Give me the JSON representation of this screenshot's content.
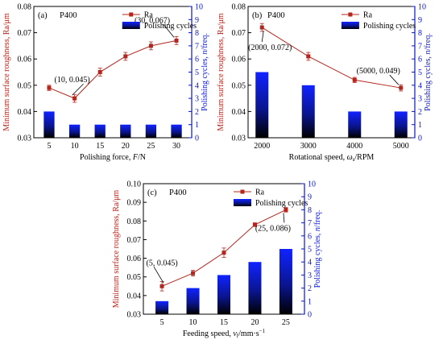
{
  "colors": {
    "ra_series": "#b3261e",
    "bar_top": "#1023ff",
    "bar_bottom": "#000000",
    "right_axis": "#0a16c8"
  },
  "chart_data": [
    {
      "type": "bar+line",
      "panel_label": "(a)",
      "grit": "P400",
      "xlabel_main": "Polishing force, ",
      "xlabel_var": "F",
      "xlabel_unit": "/N",
      "ylabel_left": "Minimum surface roughness, Ra/μm",
      "ylabel_right_main": "Polishing cycles, ",
      "ylabel_right_var": "n",
      "ylabel_right_unit": "/freq.",
      "x": [
        5,
        10,
        15,
        20,
        25,
        30
      ],
      "xtick_labels": [
        "5",
        "10",
        "15",
        "20",
        "25",
        "30"
      ],
      "xlim": [
        2,
        33
      ],
      "ylim_left": [
        0.03,
        0.08
      ],
      "yticks_left": [
        "0.03",
        "0.04",
        "0.05",
        "0.06",
        "0.07",
        "0.08"
      ],
      "ylim_right": [
        0,
        10
      ],
      "yticks_right": [
        "0",
        "1",
        "2",
        "3",
        "4",
        "5",
        "6",
        "7",
        "8",
        "9",
        "10"
      ],
      "series": [
        {
          "name": "Ra",
          "axis": "left",
          "kind": "line",
          "values": [
            0.049,
            0.045,
            0.055,
            0.061,
            0.065,
            0.067
          ],
          "error": [
            0.001,
            0.0015,
            0.0015,
            0.0015,
            0.0015,
            0.0015
          ]
        },
        {
          "name": "Polishing cycles",
          "axis": "right",
          "kind": "bar",
          "values": [
            2,
            1,
            1,
            1,
            1,
            1
          ]
        }
      ],
      "annotations": [
        {
          "text": "(10, 0.045)",
          "x": 10,
          "y": 0.045
        },
        {
          "text": "(30, 0.067)",
          "x": 30,
          "y": 0.067
        }
      ]
    },
    {
      "type": "bar+line",
      "panel_label": "(b)",
      "grit": "P400",
      "xlabel_main": "Rotational speed, ",
      "xlabel_var": "ω",
      "xlabel_sub": "s",
      "xlabel_unit": "/RPM",
      "ylabel_left": "Minimum surface roughness, Ra/μm",
      "ylabel_right_main": "Polishing cycles, ",
      "ylabel_right_var": "n",
      "ylabel_right_unit": "/freq.",
      "x": [
        2000,
        3000,
        4000,
        5000
      ],
      "xtick_labels": [
        "2000",
        "3000",
        "4000",
        "5000"
      ],
      "xlim": [
        1700,
        5300
      ],
      "ylim_left": [
        0.03,
        0.08
      ],
      "yticks_left": [
        "0.03",
        "0.04",
        "0.05",
        "0.06",
        "0.07",
        "0.08"
      ],
      "ylim_right": [
        0,
        10
      ],
      "yticks_right": [
        "0",
        "1",
        "2",
        "3",
        "4",
        "5",
        "6",
        "7",
        "8",
        "9",
        "10"
      ],
      "series": [
        {
          "name": "Ra",
          "axis": "left",
          "kind": "line",
          "values": [
            0.072,
            0.061,
            0.052,
            0.049
          ],
          "error": [
            0.0015,
            0.0015,
            0.001,
            0.0012
          ]
        },
        {
          "name": "Polishing cycles",
          "axis": "right",
          "kind": "bar",
          "values": [
            5,
            4,
            2,
            2
          ]
        }
      ],
      "annotations": [
        {
          "text": "(2000, 0.072)",
          "x": 2000,
          "y": 0.072
        },
        {
          "text": "(5000, 0.049)",
          "x": 5000,
          "y": 0.049
        }
      ]
    },
    {
      "type": "bar+line",
      "panel_label": "(c)",
      "grit": "P400",
      "xlabel_main": "Feeding speed, ",
      "xlabel_var": "v",
      "xlabel_sub": "f",
      "xlabel_unit": "/mm·s",
      "xlabel_sup": "−1",
      "ylabel_left": "Minimum surface roughness, Ra/μm",
      "ylabel_right_main": "Polishing cycles, ",
      "ylabel_right_var": "n",
      "ylabel_right_unit": "/freq.",
      "x": [
        5,
        10,
        15,
        20,
        25
      ],
      "xtick_labels": [
        "5",
        "10",
        "15",
        "20",
        "25"
      ],
      "xlim": [
        2,
        28
      ],
      "ylim_left": [
        0.03,
        0.1
      ],
      "yticks_left": [
        "0.03",
        "0.04",
        "0.05",
        "0.06",
        "0.07",
        "0.08",
        "0.09",
        "0.10"
      ],
      "ylim_right": [
        0,
        10
      ],
      "yticks_right": [
        "0",
        "1",
        "2",
        "3",
        "4",
        "5",
        "6",
        "7",
        "8",
        "9",
        "10"
      ],
      "series": [
        {
          "name": "Ra",
          "axis": "left",
          "kind": "line",
          "values": [
            0.045,
            0.052,
            0.063,
            0.078,
            0.086
          ],
          "error": [
            0.0025,
            0.0015,
            0.0025,
            0.001,
            0.0012
          ]
        },
        {
          "name": "Polishing cycles",
          "axis": "right",
          "kind": "bar",
          "values": [
            1,
            2,
            3,
            4,
            5
          ]
        }
      ],
      "annotations": [
        {
          "text": "(5, 0.045)",
          "x": 5,
          "y": 0.045
        },
        {
          "text": "(25, 0.086)",
          "x": 25,
          "y": 0.086
        }
      ]
    }
  ]
}
